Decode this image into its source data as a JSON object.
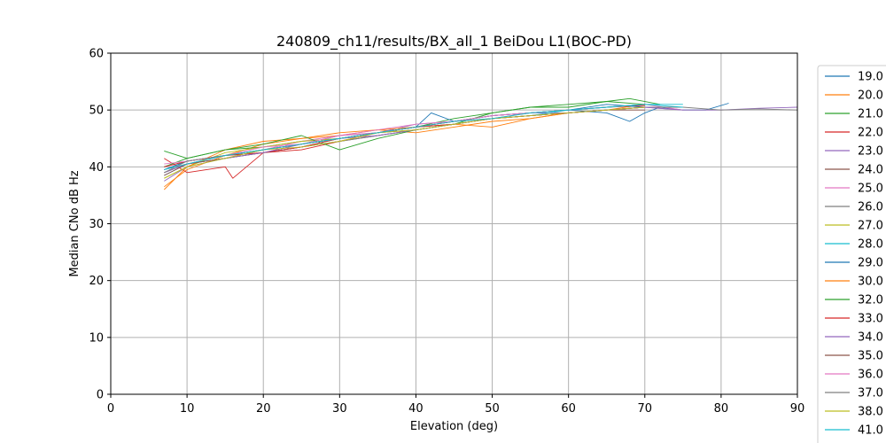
{
  "chart_data": {
    "type": "line",
    "title": "240809_ch11/results/BX_all_1 BeiDou L1(BOC-PD)",
    "xlabel": "Elevation (deg)",
    "ylabel": "Median CNo dB Hz",
    "xlim": [
      0,
      90
    ],
    "ylim": [
      0,
      60
    ],
    "xticks": [
      0,
      10,
      20,
      30,
      40,
      50,
      60,
      70,
      80,
      90
    ],
    "yticks": [
      0,
      10,
      20,
      30,
      40,
      50,
      60
    ],
    "grid": true,
    "legend_position": "right, outside plot",
    "series": [
      {
        "name": "19.0",
        "color": "#1f77b4",
        "x": [
          7,
          10,
          15,
          20,
          25,
          30,
          35,
          40,
          45,
          50,
          55,
          60,
          65,
          68,
          70,
          72,
          75,
          78,
          81
        ],
        "y": [
          38.5,
          40.5,
          42,
          43,
          44,
          45.5,
          46,
          47,
          48,
          49,
          49.5,
          50,
          49.5,
          48,
          49.5,
          50.5,
          50,
          50,
          51.2
        ]
      },
      {
        "name": "20.0",
        "color": "#ff7f0e",
        "x": [
          7,
          10,
          15,
          20,
          25,
          30,
          35,
          40,
          45,
          50,
          55,
          60,
          65,
          70
        ],
        "y": [
          36.5,
          39.5,
          42,
          44,
          45,
          45.5,
          46.5,
          46,
          47,
          48,
          48.5,
          49.5,
          50,
          51
        ]
      },
      {
        "name": "21.0",
        "color": "#2ca02c",
        "x": [
          7,
          10,
          15,
          20,
          25,
          30,
          35,
          40,
          45,
          50,
          55,
          60,
          65,
          68,
          72
        ],
        "y": [
          42.8,
          41.5,
          43,
          43.5,
          44.5,
          45,
          46,
          47,
          48.5,
          49.5,
          50.5,
          50.5,
          51.5,
          52,
          51
        ]
      },
      {
        "name": "22.0",
        "color": "#d62728",
        "x": [
          7,
          10,
          15,
          16,
          20,
          25,
          30,
          35,
          40,
          45,
          50,
          55,
          60,
          65,
          70
        ],
        "y": [
          41.5,
          39,
          40,
          38,
          42.5,
          43,
          44.5,
          46,
          47,
          48,
          49,
          49.5,
          50,
          50.5,
          50.8
        ]
      },
      {
        "name": "23.0",
        "color": "#9467bd",
        "x": [
          7,
          10,
          15,
          20,
          25,
          30,
          35,
          40,
          45,
          50,
          55,
          60,
          65,
          70,
          75,
          80,
          85,
          90
        ],
        "y": [
          37.5,
          40,
          41.5,
          42.5,
          44,
          45,
          46,
          47.5,
          48,
          49,
          49.5,
          49.5,
          50,
          50.5,
          50,
          50,
          50.3,
          50.5
        ]
      },
      {
        "name": "24.0",
        "color": "#8c564b",
        "x": [
          7,
          10,
          15,
          20,
          25,
          30,
          35,
          40,
          45,
          50,
          55,
          60,
          65,
          70
        ],
        "y": [
          39,
          40.5,
          41.5,
          42.5,
          43.5,
          44.5,
          45.5,
          46.5,
          47.5,
          48.5,
          49,
          49.5,
          50,
          50.5
        ]
      },
      {
        "name": "25.0",
        "color": "#e377c2",
        "x": [
          7,
          10,
          15,
          20,
          25,
          30,
          35,
          40,
          45,
          50,
          55,
          60,
          65,
          70,
          75
        ],
        "y": [
          40,
          41,
          42,
          43,
          44.5,
          45.5,
          46,
          47,
          48,
          49,
          49.5,
          50,
          50.5,
          51,
          50
        ]
      },
      {
        "name": "26.0",
        "color": "#7f7f7f",
        "x": [
          7,
          10,
          15,
          20,
          25,
          30,
          35,
          40,
          45,
          50,
          55,
          60,
          65,
          70,
          75,
          80,
          85,
          90
        ],
        "y": [
          39.5,
          40.5,
          41.5,
          42.5,
          43.5,
          44.5,
          45.5,
          46.5,
          47.5,
          48.5,
          49,
          49.5,
          50,
          50.5,
          50.5,
          50,
          50.2,
          50
        ]
      },
      {
        "name": "27.0",
        "color": "#bcbd22",
        "x": [
          7,
          10,
          15,
          20,
          25,
          30,
          35,
          40,
          45,
          50,
          55,
          60,
          65
        ],
        "y": [
          38,
          40,
          42.5,
          43.5,
          44.5,
          45,
          46,
          46.5,
          47.5,
          48.5,
          49,
          49.5,
          50
        ]
      },
      {
        "name": "28.0",
        "color": "#17becf",
        "x": [
          7,
          10,
          15,
          20,
          25,
          30,
          35,
          40,
          45,
          50,
          55,
          60,
          65,
          70,
          75
        ],
        "y": [
          39.5,
          41,
          42,
          43,
          44,
          45,
          46,
          47,
          47.5,
          48.5,
          49,
          50,
          50.5,
          51,
          50.5
        ]
      },
      {
        "name": "29.0",
        "color": "#1f77b4",
        "x": [
          7,
          10,
          15,
          20,
          25,
          30,
          35,
          40,
          42,
          45,
          50,
          55,
          60,
          65,
          70
        ],
        "y": [
          39.5,
          41,
          42,
          42.5,
          43.5,
          45,
          46,
          47,
          49.5,
          48,
          49,
          49.5,
          50,
          51,
          50.5
        ]
      },
      {
        "name": "30.0",
        "color": "#ff7f0e",
        "x": [
          7,
          10,
          15,
          20,
          25,
          30,
          35,
          40,
          45,
          50,
          55,
          60
        ],
        "y": [
          36,
          40,
          43,
          44.5,
          45,
          46,
          46.5,
          47,
          47.5,
          47,
          48.5,
          49.5
        ]
      },
      {
        "name": "32.0",
        "color": "#2ca02c",
        "x": [
          7,
          10,
          15,
          20,
          25,
          30,
          35,
          40,
          45,
          50,
          55,
          60,
          65,
          70
        ],
        "y": [
          40,
          41.5,
          43,
          44,
          45.5,
          43,
          45,
          46.5,
          47.5,
          49.5,
          50.5,
          51,
          51.5,
          51
        ]
      },
      {
        "name": "33.0",
        "color": "#d62728",
        "x": [
          7,
          10,
          15,
          20,
          25,
          30,
          35,
          40,
          45,
          50,
          55,
          60,
          65,
          70
        ],
        "y": [
          40,
          41,
          42,
          42.5,
          43.5,
          45,
          46,
          47,
          47.5,
          48.5,
          49,
          49.5,
          50,
          50.5
        ]
      },
      {
        "name": "34.0",
        "color": "#9467bd",
        "x": [
          7,
          10,
          15,
          20,
          25,
          30,
          35,
          40,
          45,
          50,
          55,
          60,
          65,
          70,
          75
        ],
        "y": [
          39,
          40.5,
          41.5,
          42.5,
          44,
          45,
          45.5,
          46.5,
          47.5,
          48.5,
          49,
          49.5,
          50,
          50.5,
          50
        ]
      },
      {
        "name": "35.0",
        "color": "#8c564b",
        "x": [
          7,
          10,
          15,
          20,
          25,
          30,
          35,
          40,
          45,
          50,
          55,
          60,
          65,
          70
        ],
        "y": [
          38.5,
          40.5,
          41.5,
          43,
          44,
          45,
          46,
          47,
          48,
          48.5,
          49,
          49.5,
          50,
          50
        ]
      },
      {
        "name": "36.0",
        "color": "#e377c2",
        "x": [
          7,
          10,
          15,
          20,
          25,
          30,
          35,
          40,
          45,
          50,
          55,
          60,
          65
        ],
        "y": [
          40.5,
          41,
          42,
          43.5,
          44,
          45.5,
          46.5,
          47.5,
          48,
          49,
          49.5,
          50,
          50.5
        ]
      },
      {
        "name": "37.0",
        "color": "#7f7f7f",
        "x": [
          7,
          10,
          15,
          20,
          25,
          30,
          35,
          40,
          45,
          50,
          55,
          60,
          65,
          70
        ],
        "y": [
          39,
          41,
          42,
          43,
          44,
          45,
          46,
          46.5,
          47.5,
          48.5,
          49.5,
          50,
          50.5,
          51
        ]
      },
      {
        "name": "38.0",
        "color": "#bcbd22",
        "x": [
          7,
          10,
          15,
          20,
          25,
          30,
          35,
          40,
          45,
          50,
          55,
          60,
          65,
          70
        ],
        "y": [
          38,
          40,
          41.5,
          43,
          43.5,
          44.5,
          46,
          46.5,
          47.5,
          48.5,
          49,
          49.5,
          50,
          50.5
        ]
      },
      {
        "name": "41.0",
        "color": "#17becf",
        "x": [
          7,
          10,
          15,
          20,
          25,
          30,
          35,
          40,
          45,
          50,
          55,
          60,
          65,
          70,
          75
        ],
        "y": [
          39.5,
          40.5,
          42,
          43,
          44,
          45,
          46,
          47,
          48,
          48.5,
          49.5,
          50,
          50.5,
          51,
          51
        ]
      }
    ]
  }
}
